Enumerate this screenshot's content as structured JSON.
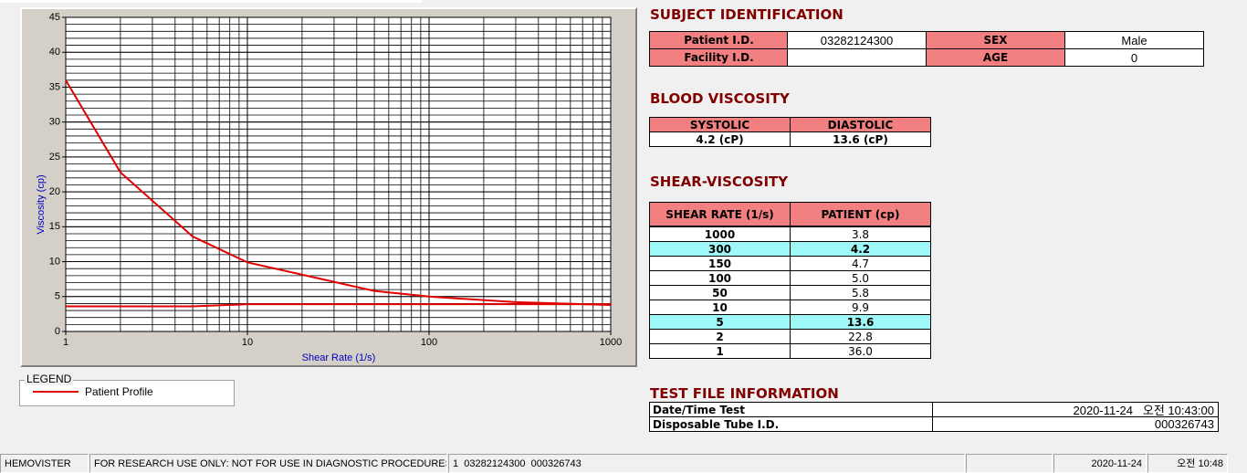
{
  "chart_data": {
    "type": "line",
    "x_label": "Shear Rate (1/s)",
    "y_label": "Viscosity (cp)",
    "x": [
      1,
      2,
      5,
      10,
      50,
      100,
      150,
      300,
      1000
    ],
    "series": [
      {
        "name": "Patient Profile",
        "color": "#e00000",
        "values": [
          36,
          22.8,
          13.6,
          9.9,
          5.8,
          5.0,
          4.7,
          4.2,
          3.8
        ]
      },
      {
        "color": "#e00000",
        "values": [
          3.6,
          3.6,
          3.6,
          3.9,
          3.9,
          3.9,
          3.9,
          3.9,
          3.9
        ]
      }
    ],
    "xlim": [
      1,
      1000
    ],
    "xticks": [
      1,
      10,
      100,
      1000
    ],
    "log_x": true,
    "ylim": [
      0,
      45
    ],
    "yticks": [
      0,
      5,
      10,
      15,
      20,
      25,
      30,
      35,
      40,
      45
    ],
    "grid": true,
    "legend_title": "LEGEND"
  },
  "subject": {
    "title": "SUBJECT IDENTIFICATION",
    "patient_id": {
      "label": "Patient I.D.",
      "value": "03282124300"
    },
    "facility_id": {
      "label": "Facility I.D."
    },
    "sex": {
      "label": "SEX",
      "value": "Male"
    },
    "age": {
      "label": "AGE",
      "value": 0
    }
  },
  "blood": {
    "title": "BLOOD VISCOSITY",
    "headers": [
      "SYSTOLIC",
      "DIASTOLIC"
    ],
    "values": [
      "4.2 (cP)",
      "13.6 (cP)"
    ]
  },
  "shear": {
    "title": "SHEAR-VISCOSITY",
    "headers": [
      "SHEAR RATE (1/s)",
      "PATIENT (cp)"
    ],
    "rows": [
      {
        "cells": [
          "1000",
          "3.8"
        ]
      },
      {
        "cells": [
          "300",
          "4.2"
        ],
        "highlighted": true
      },
      {
        "cells": [
          "150",
          "4.7"
        ]
      },
      {
        "cells": [
          "100",
          "5.0"
        ]
      },
      {
        "cells": [
          "50",
          "5.8"
        ]
      },
      {
        "cells": [
          "10",
          "9.9"
        ]
      },
      {
        "cells": [
          "5",
          "13.6"
        ],
        "highlighted": true
      },
      {
        "cells": [
          "2",
          "22.8"
        ]
      },
      {
        "cells": [
          "1",
          "36.0"
        ]
      }
    ]
  },
  "test_file": {
    "title": "TEST FILE INFORMATION",
    "rows": [
      [
        "Date/Time Test",
        "2020-11-24   오전 10:43:00"
      ],
      [
        "Disposable Tube I.D.",
        "000326743"
      ]
    ]
  },
  "status_bar": [
    "HEMOVISTER",
    "FOR RESEARCH USE ONLY: NOT FOR USE IN DIAGNOSTIC PROCEDURES",
    "1  03282124300  000326743",
    "2020-11-24",
    "오전 10:48"
  ]
}
